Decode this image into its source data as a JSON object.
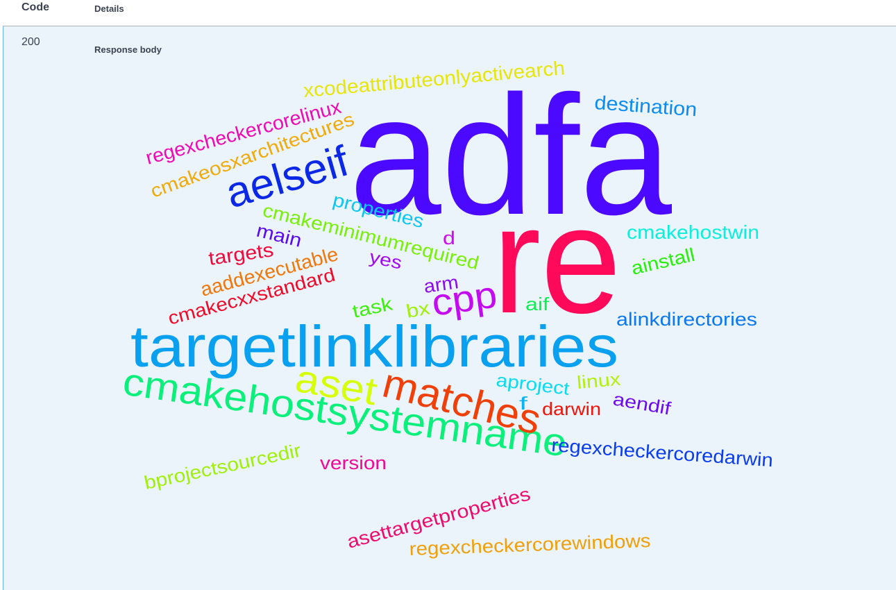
{
  "table": {
    "code_header": "Code",
    "details_header": "Details"
  },
  "response": {
    "status_code": "200",
    "body_label": "Response body"
  },
  "word_cloud": {
    "words": [
      {
        "text": "adfa",
        "color": "#4b0aff"
      },
      {
        "text": "re",
        "color": "#ff0a5a"
      },
      {
        "text": "targetlinklibraries",
        "color": "#0aa0f0"
      },
      {
        "text": "cmakehostsystemname",
        "color": "#0af07a"
      },
      {
        "text": "matches",
        "color": "#f0400a"
      },
      {
        "text": "aset",
        "color": "#d6ff0a"
      },
      {
        "text": "aelseif",
        "color": "#0a28e6"
      },
      {
        "text": "cpp",
        "color": "#c30af0"
      },
      {
        "text": "xcodeattributeonlyactivearch",
        "color": "#e6e60a"
      },
      {
        "text": "destination",
        "color": "#0a8cf0"
      },
      {
        "text": "regexcheckercorelinux",
        "color": "#f00ab4"
      },
      {
        "text": "cmakeosxarchitectures",
        "color": "#f0aa0a"
      },
      {
        "text": "properties",
        "color": "#0ac8f0"
      },
      {
        "text": "cmakeminimumrequired",
        "color": "#78f00a"
      },
      {
        "text": "main",
        "color": "#5a0af0"
      },
      {
        "text": "targets",
        "color": "#f00a3c"
      },
      {
        "text": "aaddexecutable",
        "color": "#f0780a"
      },
      {
        "text": "cmakecxxstandard",
        "color": "#f00a28"
      },
      {
        "text": "yes",
        "color": "#a00af0"
      },
      {
        "text": "d",
        "color": "#d20af0"
      },
      {
        "text": "cmakehostwin",
        "color": "#0af0dc"
      },
      {
        "text": "ainstall",
        "color": "#28f00a"
      },
      {
        "text": "arm",
        "color": "#8c0af0"
      },
      {
        "text": "task",
        "color": "#3cf00a"
      },
      {
        "text": "bx",
        "color": "#a0f00a"
      },
      {
        "text": "aif",
        "color": "#0af050"
      },
      {
        "text": "alinkdirectories",
        "color": "#0a78f0"
      },
      {
        "text": "aproject",
        "color": "#0adcf0"
      },
      {
        "text": "linux",
        "color": "#b4f00a"
      },
      {
        "text": "f",
        "color": "#0ab4f0"
      },
      {
        "text": "darwin",
        "color": "#f0140a"
      },
      {
        "text": "aendif",
        "color": "#6e0af0"
      },
      {
        "text": "regexcheckercoredarwin",
        "color": "#0a3cf0"
      },
      {
        "text": "version",
        "color": "#f00a96"
      },
      {
        "text": "bprojectsourcedir",
        "color": "#a0f00a"
      },
      {
        "text": "asettargetproperties",
        "color": "#f00a6e"
      },
      {
        "text": "regexcheckercorewindows",
        "color": "#f0a00a"
      }
    ]
  }
}
